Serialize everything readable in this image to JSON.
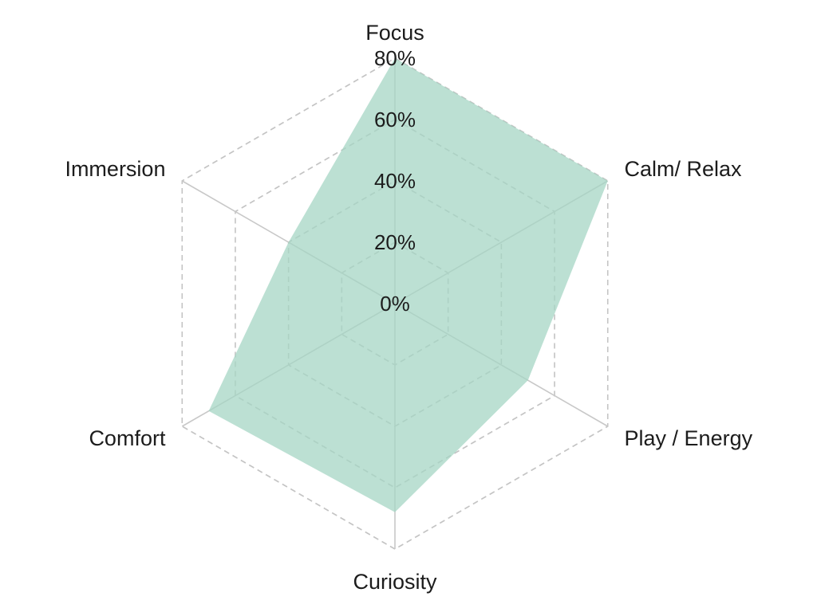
{
  "chart_data": {
    "type": "radar",
    "axes": [
      "Focus",
      "Calm/ Relax",
      "Play / Energy",
      "Curiosity",
      "Comfort",
      "Immersion"
    ],
    "series": [
      {
        "values": [
          80,
          80,
          50,
          68,
          70,
          40
        ]
      }
    ],
    "rlim": [
      0,
      80
    ],
    "ticks": [
      0,
      20,
      40,
      60,
      80
    ],
    "tick_labels": [
      "0%",
      "20%",
      "40%",
      "60%",
      "80%"
    ],
    "grid": true,
    "colors": {
      "fill": "#a6d6c4",
      "grid_dashed": "#c4c4c4",
      "spoke": "#c8c8c8",
      "outer_spoke": "#bdbdbd",
      "text": "#1c1c1c"
    }
  }
}
